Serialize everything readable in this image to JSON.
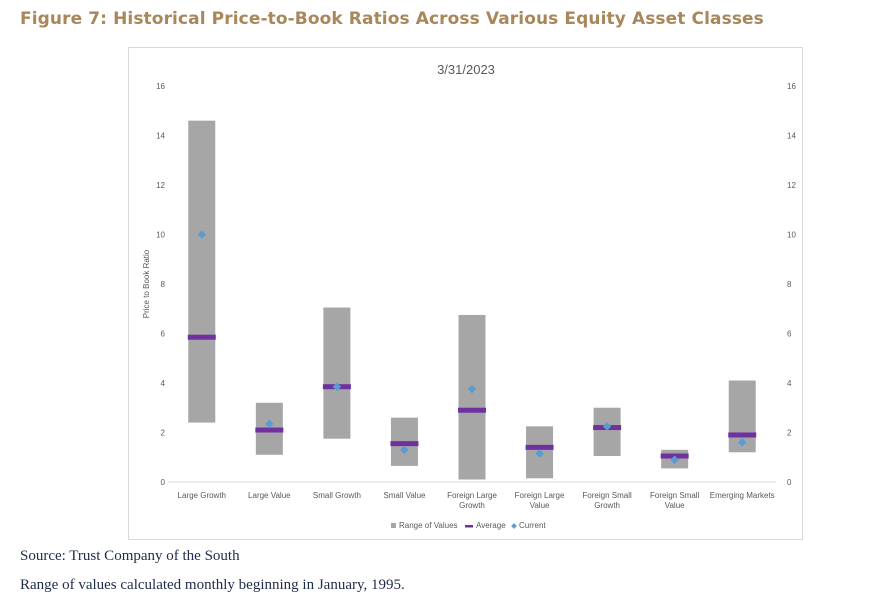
{
  "figure_title": "Figure 7: Historical Price-to-Book Ratios Across Various Equity Asset Classes",
  "footnotes": {
    "source": "Source: Trust Company of the South",
    "note": "Range of values calculated monthly beginning in January, 1995."
  },
  "colors": {
    "title": "#a8875a",
    "range": "#a6a6a6",
    "average": "#7030a0",
    "current": "#5b9bd5",
    "footnote": "#1f2b4a"
  },
  "chart_data": {
    "type": "bar",
    "title": "3/31/2023",
    "ylabel": "Price to Book Ratio",
    "ylim": [
      0,
      16
    ],
    "yticks": [
      0,
      2,
      4,
      6,
      8,
      10,
      12,
      14,
      16
    ],
    "grid": false,
    "legend_position": "bottom",
    "categories": [
      [
        "Large Growth"
      ],
      [
        "Large Value"
      ],
      [
        "Small Growth"
      ],
      [
        "Small Value"
      ],
      [
        "Foreign Large",
        "Growth"
      ],
      [
        "Foreign Large",
        "Value"
      ],
      [
        "Foreign Small",
        "Growth"
      ],
      [
        "Foreign Small",
        "Value"
      ],
      [
        "Emerging Markets"
      ]
    ],
    "series": [
      {
        "name": "Range of Values",
        "kind": "range",
        "low": [
          2.4,
          1.1,
          1.75,
          0.65,
          0.1,
          0.15,
          1.05,
          0.55,
          1.2
        ],
        "high": [
          14.6,
          3.2,
          7.05,
          2.6,
          6.75,
          2.25,
          3.0,
          1.3,
          4.1
        ]
      },
      {
        "name": "Average",
        "kind": "marker",
        "values": [
          5.85,
          2.1,
          3.85,
          1.55,
          2.9,
          1.4,
          2.2,
          1.05,
          1.9
        ]
      },
      {
        "name": "Current",
        "kind": "point",
        "values": [
          10.0,
          2.35,
          3.85,
          1.3,
          3.75,
          1.15,
          2.25,
          0.9,
          1.6
        ]
      }
    ]
  }
}
